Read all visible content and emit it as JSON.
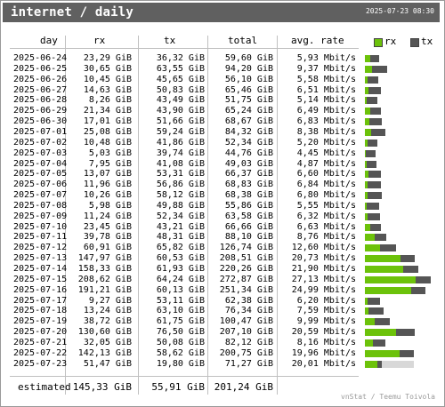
{
  "header": {
    "title": "internet / daily",
    "timestamp": "2025-07-23 08:30"
  },
  "columns": {
    "day": "day",
    "rx": "rx",
    "tx": "tx",
    "total": "total",
    "rate": "avg. rate"
  },
  "legend": {
    "rx": "rx",
    "tx": "tx"
  },
  "colors": {
    "rx": "#6cc20a",
    "tx": "#555555",
    "header": "#606060",
    "estimate": "#d8d8d8"
  },
  "rows": [
    {
      "day": "2025-06-24",
      "rx": "23,29 GiB",
      "tx": "36,32 GiB",
      "total": "59,60 GiB",
      "rate": "5,93 Mbit/s",
      "rx_gib": 23.29,
      "tx_gib": 36.32
    },
    {
      "day": "2025-06-25",
      "rx": "30,65 GiB",
      "tx": "63,55 GiB",
      "total": "94,20 GiB",
      "rate": "9,37 Mbit/s",
      "rx_gib": 30.65,
      "tx_gib": 63.55
    },
    {
      "day": "2025-06-26",
      "rx": "10,45 GiB",
      "tx": "45,65 GiB",
      "total": "56,10 GiB",
      "rate": "5,58 Mbit/s",
      "rx_gib": 10.45,
      "tx_gib": 45.65
    },
    {
      "day": "2025-06-27",
      "rx": "14,63 GiB",
      "tx": "50,83 GiB",
      "total": "65,46 GiB",
      "rate": "6,51 Mbit/s",
      "rx_gib": 14.63,
      "tx_gib": 50.83
    },
    {
      "day": "2025-06-28",
      "rx": "8,26 GiB",
      "tx": "43,49 GiB",
      "total": "51,75 GiB",
      "rate": "5,14 Mbit/s",
      "rx_gib": 8.26,
      "tx_gib": 43.49
    },
    {
      "day": "2025-06-29",
      "rx": "21,34 GiB",
      "tx": "43,90 GiB",
      "total": "65,24 GiB",
      "rate": "6,49 Mbit/s",
      "rx_gib": 21.34,
      "tx_gib": 43.9
    },
    {
      "day": "2025-06-30",
      "rx": "17,01 GiB",
      "tx": "51,66 GiB",
      "total": "68,67 GiB",
      "rate": "6,83 Mbit/s",
      "rx_gib": 17.01,
      "tx_gib": 51.66
    },
    {
      "day": "2025-07-01",
      "rx": "25,08 GiB",
      "tx": "59,24 GiB",
      "total": "84,32 GiB",
      "rate": "8,38 Mbit/s",
      "rx_gib": 25.08,
      "tx_gib": 59.24
    },
    {
      "day": "2025-07-02",
      "rx": "10,48 GiB",
      "tx": "41,86 GiB",
      "total": "52,34 GiB",
      "rate": "5,20 Mbit/s",
      "rx_gib": 10.48,
      "tx_gib": 41.86
    },
    {
      "day": "2025-07-03",
      "rx": "5,03 GiB",
      "tx": "39,74 GiB",
      "total": "44,76 GiB",
      "rate": "4,45 Mbit/s",
      "rx_gib": 5.03,
      "tx_gib": 39.74
    },
    {
      "day": "2025-07-04",
      "rx": "7,95 GiB",
      "tx": "41,08 GiB",
      "total": "49,03 GiB",
      "rate": "4,87 Mbit/s",
      "rx_gib": 7.95,
      "tx_gib": 41.08
    },
    {
      "day": "2025-07-05",
      "rx": "13,07 GiB",
      "tx": "53,31 GiB",
      "total": "66,37 GiB",
      "rate": "6,60 Mbit/s",
      "rx_gib": 13.07,
      "tx_gib": 53.31
    },
    {
      "day": "2025-07-06",
      "rx": "11,96 GiB",
      "tx": "56,86 GiB",
      "total": "68,83 GiB",
      "rate": "6,84 Mbit/s",
      "rx_gib": 11.96,
      "tx_gib": 56.86
    },
    {
      "day": "2025-07-07",
      "rx": "10,26 GiB",
      "tx": "58,12 GiB",
      "total": "68,38 GiB",
      "rate": "6,80 Mbit/s",
      "rx_gib": 10.26,
      "tx_gib": 58.12
    },
    {
      "day": "2025-07-08",
      "rx": "5,98 GiB",
      "tx": "49,88 GiB",
      "total": "55,86 GiB",
      "rate": "5,55 Mbit/s",
      "rx_gib": 5.98,
      "tx_gib": 49.88
    },
    {
      "day": "2025-07-09",
      "rx": "11,24 GiB",
      "tx": "52,34 GiB",
      "total": "63,58 GiB",
      "rate": "6,32 Mbit/s",
      "rx_gib": 11.24,
      "tx_gib": 52.34
    },
    {
      "day": "2025-07-10",
      "rx": "23,45 GiB",
      "tx": "43,21 GiB",
      "total": "66,66 GiB",
      "rate": "6,63 Mbit/s",
      "rx_gib": 23.45,
      "tx_gib": 43.21
    },
    {
      "day": "2025-07-11",
      "rx": "39,78 GiB",
      "tx": "48,31 GiB",
      "total": "88,10 GiB",
      "rate": "8,76 Mbit/s",
      "rx_gib": 39.78,
      "tx_gib": 48.31
    },
    {
      "day": "2025-07-12",
      "rx": "60,91 GiB",
      "tx": "65,82 GiB",
      "total": "126,74 GiB",
      "rate": "12,60 Mbit/s",
      "rx_gib": 60.91,
      "tx_gib": 65.82
    },
    {
      "day": "2025-07-13",
      "rx": "147,97 GiB",
      "tx": "60,53 GiB",
      "total": "208,51 GiB",
      "rate": "20,73 Mbit/s",
      "rx_gib": 147.97,
      "tx_gib": 60.53
    },
    {
      "day": "2025-07-14",
      "rx": "158,33 GiB",
      "tx": "61,93 GiB",
      "total": "220,26 GiB",
      "rate": "21,90 Mbit/s",
      "rx_gib": 158.33,
      "tx_gib": 61.93
    },
    {
      "day": "2025-07-15",
      "rx": "208,62 GiB",
      "tx": "64,24 GiB",
      "total": "272,87 GiB",
      "rate": "27,13 Mbit/s",
      "rx_gib": 208.62,
      "tx_gib": 64.24
    },
    {
      "day": "2025-07-16",
      "rx": "191,21 GiB",
      "tx": "60,13 GiB",
      "total": "251,34 GiB",
      "rate": "24,99 Mbit/s",
      "rx_gib": 191.21,
      "tx_gib": 60.13
    },
    {
      "day": "2025-07-17",
      "rx": "9,27 GiB",
      "tx": "53,11 GiB",
      "total": "62,38 GiB",
      "rate": "6,20 Mbit/s",
      "rx_gib": 9.27,
      "tx_gib": 53.11
    },
    {
      "day": "2025-07-18",
      "rx": "13,24 GiB",
      "tx": "63,10 GiB",
      "total": "76,34 GiB",
      "rate": "7,59 Mbit/s",
      "rx_gib": 13.24,
      "tx_gib": 63.1
    },
    {
      "day": "2025-07-19",
      "rx": "38,72 GiB",
      "tx": "61,75 GiB",
      "total": "100,47 GiB",
      "rate": "9,99 Mbit/s",
      "rx_gib": 38.72,
      "tx_gib": 61.75
    },
    {
      "day": "2025-07-20",
      "rx": "130,60 GiB",
      "tx": "76,50 GiB",
      "total": "207,10 GiB",
      "rate": "20,59 Mbit/s",
      "rx_gib": 130.6,
      "tx_gib": 76.5
    },
    {
      "day": "2025-07-21",
      "rx": "32,05 GiB",
      "tx": "50,08 GiB",
      "total": "82,12 GiB",
      "rate": "8,16 Mbit/s",
      "rx_gib": 32.05,
      "tx_gib": 50.08
    },
    {
      "day": "2025-07-22",
      "rx": "142,13 GiB",
      "tx": "58,62 GiB",
      "total": "200,75 GiB",
      "rate": "19,96 Mbit/s",
      "rx_gib": 142.13,
      "tx_gib": 58.62
    },
    {
      "day": "2025-07-23",
      "rx": "51,47 GiB",
      "tx": "19,80 GiB",
      "total": "71,27 GiB",
      "rate": "20,01 Mbit/s",
      "rx_gib": 51.47,
      "tx_gib": 19.8,
      "estimated_total_gib": 201.24
    }
  ],
  "estimated": {
    "label": "estimated",
    "rx": "145,33 GiB",
    "tx": "55,91 GiB",
    "total": "201,24 GiB"
  },
  "footer": {
    "credit": "vnStat / Teemu Toivola"
  }
}
